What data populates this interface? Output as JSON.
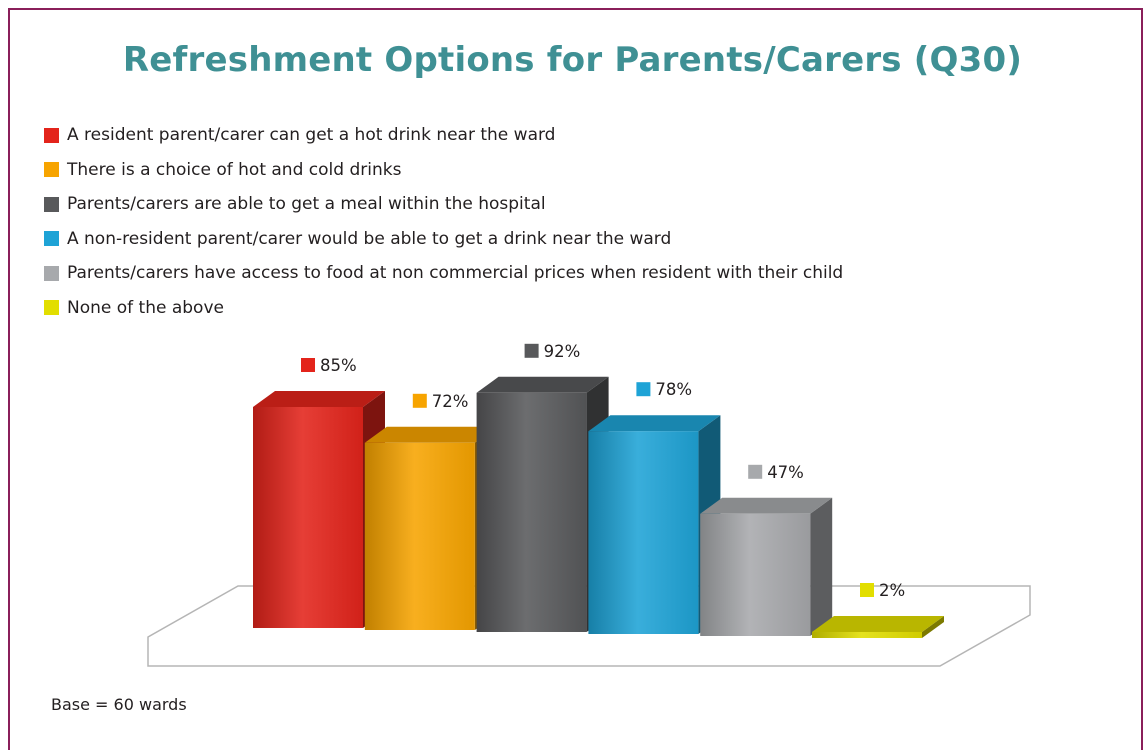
{
  "title": "Refreshment Options for Parents/Carers (Q30)",
  "footnote": "Base = 60 wards",
  "chart_data": {
    "type": "bar",
    "title": "Refreshment Options for Parents/Carers (Q30)",
    "legend_position": "top-left",
    "grid": false,
    "categories": [
      "A resident parent/carer can get a hot drink near the ward",
      "There is a choice of hot and cold drinks",
      "Parents/carers are able to get a meal within the hospital",
      "A non-resident parent/carer would be able to get a drink near the ward",
      "Parents/carers have access to food at non commercial prices when resident with their child",
      "None of the above"
    ],
    "values": [
      85,
      72,
      92,
      78,
      47,
      2
    ],
    "value_labels": [
      "85%",
      "72%",
      "92%",
      "78%",
      "47%",
      "2%"
    ],
    "colors": [
      "#e3241b",
      "#f7a400",
      "#58595b",
      "#1ea3d6",
      "#a7a9ac",
      "#e2de00"
    ],
    "ylim": [
      0,
      100
    ]
  }
}
